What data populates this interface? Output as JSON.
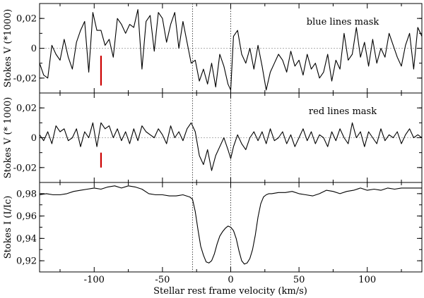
{
  "chart_data": {
    "type": "line",
    "xlabel": "Stellar rest frame velocity (km/s)",
    "xlim": [
      -140,
      140
    ],
    "xticks": [
      -100,
      -50,
      0,
      50,
      100
    ],
    "xtick_labels": [
      "-100",
      "-50",
      "0",
      "50",
      "100"
    ],
    "vlines": [
      -28,
      0
    ],
    "panels": [
      {
        "id": "blue",
        "ylabel": "Stokes V (*1000)",
        "annotation": "blue lines mask",
        "ylim": [
          -0.03,
          0.03
        ],
        "yticks": [
          0.02,
          0,
          -0.02
        ],
        "ytick_labels": [
          "0,02",
          "0",
          "-0,02"
        ],
        "error_bar": {
          "x": -95,
          "y_low": -0.025,
          "y_high": -0.005,
          "color": "#cc0000"
        },
        "series": [
          {
            "x": [
              -140,
              -137,
              -134,
              -131,
              -128,
              -125,
              -122,
              -119,
              -116,
              -113,
              -110,
              -107,
              -104,
              -101,
              -98,
              -95,
              -92,
              -89,
              -86,
              -83,
              -80,
              -77,
              -74,
              -71,
              -68,
              -65,
              -62,
              -59,
              -56,
              -53,
              -50,
              -47,
              -44,
              -41,
              -38,
              -35,
              -32,
              -29,
              -26,
              -23,
              -20,
              -17,
              -14,
              -11,
              -8,
              -5,
              -2,
              0,
              2,
              5,
              8,
              11,
              14,
              17,
              20,
              23,
              26,
              29,
              32,
              35,
              38,
              41,
              44,
              47,
              50,
              53,
              56,
              59,
              62,
              65,
              68,
              71,
              74,
              77,
              80,
              83,
              86,
              89,
              92,
              95,
              98,
              101,
              104,
              107,
              110,
              113,
              116,
              119,
              122,
              125,
              128,
              131,
              134,
              137,
              140
            ],
            "y": [
              -0.01,
              -0.018,
              -0.02,
              0.002,
              -0.004,
              -0.008,
              0.006,
              -0.006,
              -0.014,
              0.004,
              0.012,
              0.018,
              -0.016,
              0.024,
              0.012,
              0.012,
              0.002,
              0.006,
              -0.006,
              0.02,
              0.016,
              0.01,
              0.016,
              0.014,
              0.026,
              -0.014,
              0.018,
              0.022,
              -0.002,
              0.024,
              0.02,
              0.004,
              0.016,
              0.024,
              0.0,
              0.018,
              0.004,
              -0.01,
              -0.008,
              -0.022,
              -0.014,
              -0.024,
              -0.01,
              -0.026,
              -0.004,
              -0.012,
              -0.024,
              -0.028,
              0.008,
              0.012,
              -0.004,
              -0.01,
              0.0,
              -0.014,
              0.002,
              -0.012,
              -0.028,
              -0.016,
              -0.01,
              -0.004,
              -0.008,
              -0.016,
              -0.002,
              -0.012,
              -0.008,
              -0.018,
              -0.004,
              -0.014,
              -0.01,
              -0.02,
              -0.016,
              -0.004,
              -0.022,
              -0.008,
              -0.014,
              0.01,
              -0.008,
              -0.004,
              0.014,
              -0.006,
              0.004,
              -0.012,
              0.006,
              -0.01,
              0.0,
              -0.006,
              0.01,
              0.002,
              -0.006,
              -0.012,
              0.002,
              0.01,
              -0.014,
              0.014,
              0.008
            ]
          }
        ]
      },
      {
        "id": "red",
        "ylabel": "Stokes V (* 1000)",
        "annotation": "red lines mask",
        "ylim": [
          -0.03,
          0.03
        ],
        "yticks": [
          0.02,
          0,
          -0.02
        ],
        "ytick_labels": [
          "0,02",
          "0",
          "-0,02"
        ],
        "error_bar": {
          "x": -95,
          "y_low": -0.02,
          "y_high": -0.01,
          "color": "#cc0000"
        },
        "series": [
          {
            "x": [
              -140,
              -137,
              -134,
              -131,
              -128,
              -125,
              -122,
              -119,
              -116,
              -113,
              -110,
              -107,
              -104,
              -101,
              -98,
              -95,
              -92,
              -89,
              -86,
              -83,
              -80,
              -77,
              -74,
              -71,
              -68,
              -65,
              -62,
              -59,
              -56,
              -53,
              -50,
              -47,
              -44,
              -41,
              -38,
              -35,
              -32,
              -29,
              -26,
              -23,
              -20,
              -17,
              -14,
              -11,
              -8,
              -5,
              -2,
              0,
              2,
              5,
              8,
              11,
              14,
              17,
              20,
              23,
              26,
              29,
              32,
              35,
              38,
              41,
              44,
              47,
              50,
              53,
              56,
              59,
              62,
              65,
              68,
              71,
              74,
              77,
              80,
              83,
              86,
              89,
              92,
              95,
              98,
              101,
              104,
              107,
              110,
              113,
              116,
              119,
              122,
              125,
              128,
              131,
              134,
              137,
              140
            ],
            "y": [
              0.002,
              -0.002,
              0.004,
              -0.004,
              0.008,
              0.004,
              0.006,
              -0.002,
              0.0,
              0.006,
              -0.006,
              0.004,
              0.0,
              0.01,
              -0.006,
              0.01,
              0.006,
              0.008,
              0.0,
              0.006,
              -0.002,
              0.004,
              -0.004,
              0.006,
              -0.002,
              0.008,
              0.004,
              0.002,
              0.0,
              0.006,
              0.002,
              -0.004,
              0.008,
              0.0,
              0.004,
              -0.002,
              0.006,
              0.01,
              0.004,
              -0.012,
              -0.018,
              -0.008,
              -0.022,
              -0.012,
              -0.006,
              0.0,
              -0.008,
              -0.014,
              -0.006,
              0.002,
              -0.004,
              -0.008,
              0.0,
              0.004,
              -0.002,
              0.004,
              -0.004,
              0.006,
              -0.002,
              0.0,
              0.004,
              -0.004,
              0.002,
              -0.006,
              0.0,
              0.006,
              -0.002,
              0.004,
              -0.004,
              0.002,
              0.0,
              -0.006,
              0.004,
              -0.002,
              0.006,
              0.0,
              -0.004,
              0.01,
              0.0,
              0.004,
              -0.006,
              0.004,
              0.0,
              -0.004,
              0.006,
              -0.002,
              0.002,
              0.0,
              0.004,
              -0.004,
              0.002,
              0.006,
              0.0,
              0.002,
              0.0
            ]
          }
        ]
      },
      {
        "id": "intensity",
        "ylabel": "Stokes I (I/Ic)",
        "ylim": [
          0.91,
          0.99
        ],
        "yticks": [
          0.98,
          0.96,
          0.94,
          0.92
        ],
        "ytick_labels": [
          "0,98",
          "0,96",
          "0,94",
          "0,92"
        ],
        "series": [
          {
            "x": [
              -140,
              -135,
              -130,
              -125,
              -120,
              -115,
              -110,
              -105,
              -100,
              -95,
              -90,
              -85,
              -80,
              -75,
              -70,
              -65,
              -60,
              -55,
              -50,
              -45,
              -40,
              -35,
              -30,
              -28,
              -26,
              -24,
              -22,
              -20,
              -18,
              -16,
              -14,
              -12,
              -10,
              -8,
              -6,
              -4,
              -2,
              0,
              2,
              4,
              6,
              8,
              10,
              12,
              14,
              16,
              18,
              20,
              22,
              24,
              26,
              28,
              30,
              35,
              40,
              45,
              50,
              55,
              60,
              65,
              70,
              75,
              80,
              85,
              90,
              95,
              100,
              105,
              110,
              115,
              120,
              125,
              130,
              135,
              140
            ],
            "y": [
              0.979,
              0.98,
              0.979,
              0.979,
              0.98,
              0.982,
              0.983,
              0.984,
              0.985,
              0.984,
              0.986,
              0.987,
              0.985,
              0.987,
              0.986,
              0.984,
              0.98,
              0.979,
              0.979,
              0.978,
              0.978,
              0.979,
              0.977,
              0.975,
              0.964,
              0.948,
              0.933,
              0.925,
              0.919,
              0.918,
              0.92,
              0.926,
              0.935,
              0.942,
              0.946,
              0.949,
              0.951,
              0.95,
              0.947,
              0.94,
              0.929,
              0.92,
              0.917,
              0.918,
              0.922,
              0.93,
              0.943,
              0.959,
              0.971,
              0.977,
              0.979,
              0.98,
              0.98,
              0.981,
              0.981,
              0.982,
              0.98,
              0.979,
              0.978,
              0.98,
              0.983,
              0.982,
              0.98,
              0.982,
              0.983,
              0.985,
              0.983,
              0.984,
              0.983,
              0.985,
              0.984,
              0.985,
              0.985,
              0.985,
              0.985
            ]
          }
        ]
      }
    ]
  }
}
